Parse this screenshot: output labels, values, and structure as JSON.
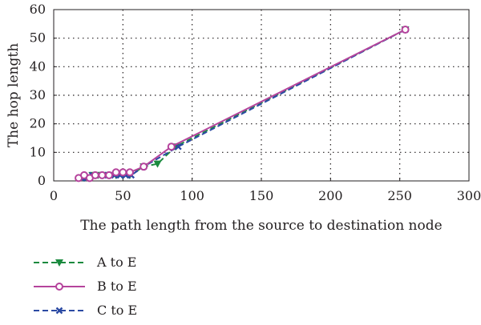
{
  "chart_data": {
    "type": "line",
    "xlabel": "The path length from the source to destination node",
    "ylabel": "The hop length",
    "xlim": [
      0,
      300
    ],
    "ylim": [
      0,
      60
    ],
    "xticks": [
      0,
      50,
      100,
      150,
      200,
      250,
      300
    ],
    "yticks": [
      0,
      10,
      20,
      30,
      40,
      50,
      60
    ],
    "grid": "dotted",
    "legend_position": "bottom-left, below plot",
    "series": [
      {
        "name": "A to E",
        "color": "#1a8a3e",
        "marker": "triangle-down",
        "dash": "dashed",
        "points": [
          [
            22,
            1
          ],
          [
            25,
            1
          ],
          [
            28,
            2
          ],
          [
            30,
            2
          ],
          [
            32,
            2
          ],
          [
            35,
            2
          ],
          [
            40,
            2
          ],
          [
            45,
            2
          ],
          [
            50,
            2
          ],
          [
            55,
            2
          ],
          [
            65,
            5
          ],
          [
            75,
            6
          ],
          [
            88,
            12
          ],
          [
            254,
            53
          ]
        ]
      },
      {
        "name": "B to E",
        "color": "#b5439c",
        "marker": "circle",
        "dash": "solid",
        "points": [
          [
            18,
            1
          ],
          [
            22,
            2
          ],
          [
            26,
            1
          ],
          [
            30,
            2
          ],
          [
            35,
            2
          ],
          [
            40,
            2
          ],
          [
            45,
            3
          ],
          [
            50,
            3
          ],
          [
            55,
            3
          ],
          [
            65,
            5
          ],
          [
            85,
            12
          ],
          [
            254,
            53
          ]
        ]
      },
      {
        "name": "C to E",
        "color": "#2b4aa3",
        "marker": "x",
        "dash": "dashed",
        "points": [
          [
            20,
            1
          ],
          [
            24,
            1
          ],
          [
            28,
            2
          ],
          [
            32,
            2
          ],
          [
            36,
            2
          ],
          [
            40,
            2
          ],
          [
            44,
            2
          ],
          [
            48,
            2
          ],
          [
            52,
            2
          ],
          [
            56,
            2
          ],
          [
            65,
            5
          ],
          [
            90,
            12
          ],
          [
            254,
            53
          ]
        ]
      }
    ]
  }
}
